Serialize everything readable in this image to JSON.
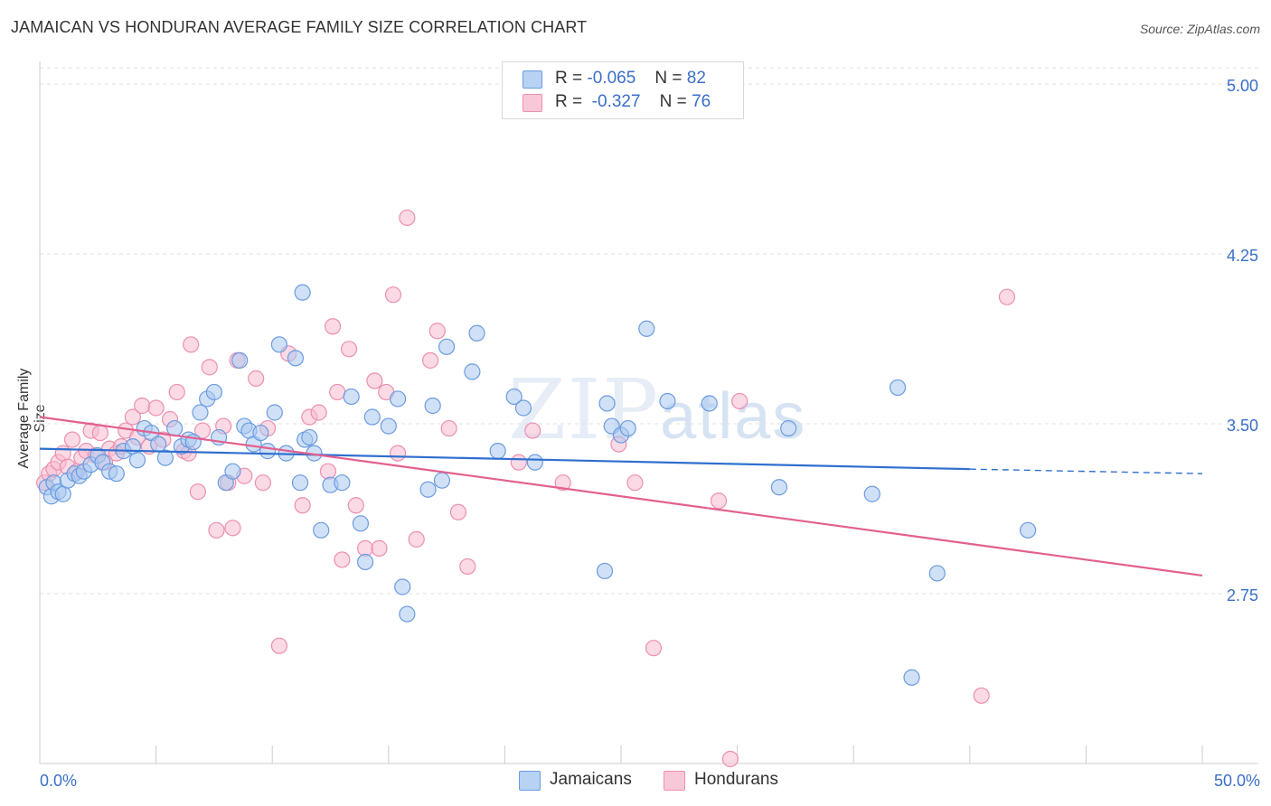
{
  "title": "JAMAICAN VS HONDURAN AVERAGE FAMILY SIZE CORRELATION CHART",
  "source": "Source: ZipAtlas.com",
  "watermark": {
    "zip": "ZIP",
    "atlas": "atlas"
  },
  "legend": {
    "rows": [
      {
        "r_label": "R =",
        "r_value": "-0.065",
        "n_label": "N =",
        "n_value": "82"
      },
      {
        "r_label": "R =",
        "r_value": "-0.327",
        "n_label": "N =",
        "n_value": "76"
      }
    ]
  },
  "colors": {
    "jamaicans_fill": "#a9c8f0",
    "jamaicans_stroke": "#6b9be0",
    "jamaicans_line": "#2f6fcf",
    "hondurans_fill": "#f7bcd0",
    "hondurans_stroke": "#ec8fb0",
    "hondurans_line": "#e2608f",
    "tick_label": "#3a6fc9",
    "grid": "#e2e2e2"
  },
  "chart_data": {
    "type": "scatter",
    "title": "JAMAICAN VS HONDURAN AVERAGE FAMILY SIZE CORRELATION CHART",
    "xlabel": "",
    "ylabel": "Average Family Size",
    "xlim": [
      0,
      50
    ],
    "ylim": [
      2.0,
      5.1
    ],
    "x_tick_labels": [
      "0.0%",
      "50.0%"
    ],
    "y_ticks": [
      2.75,
      3.5,
      4.25,
      5.0
    ],
    "y_tick_labels": [
      "2.75",
      "3.50",
      "4.25",
      "5.00"
    ],
    "grid": true,
    "legend_position": "bottom",
    "series": [
      {
        "name": "Jamaicans",
        "r": -0.065,
        "n": 82,
        "trend": {
          "x0": 0,
          "y0": 3.39,
          "x1": 40,
          "y1": 3.3,
          "dashed_to_x": 50,
          "dashed_to_y": 3.28
        },
        "points": [
          [
            0.3,
            3.22
          ],
          [
            0.5,
            3.18
          ],
          [
            0.6,
            3.24
          ],
          [
            0.8,
            3.2
          ],
          [
            1.0,
            3.19
          ],
          [
            1.2,
            3.25
          ],
          [
            1.5,
            3.28
          ],
          [
            1.7,
            3.27
          ],
          [
            1.9,
            3.29
          ],
          [
            2.2,
            3.32
          ],
          [
            2.5,
            3.36
          ],
          [
            2.7,
            3.33
          ],
          [
            3.0,
            3.29
          ],
          [
            3.3,
            3.28
          ],
          [
            3.6,
            3.38
          ],
          [
            4.0,
            3.4
          ],
          [
            4.2,
            3.34
          ],
          [
            4.5,
            3.48
          ],
          [
            4.8,
            3.46
          ],
          [
            5.1,
            3.41
          ],
          [
            5.4,
            3.35
          ],
          [
            5.8,
            3.48
          ],
          [
            6.1,
            3.4
          ],
          [
            6.4,
            3.43
          ],
          [
            6.6,
            3.42
          ],
          [
            6.9,
            3.55
          ],
          [
            7.2,
            3.61
          ],
          [
            7.5,
            3.64
          ],
          [
            7.7,
            3.44
          ],
          [
            8.0,
            3.24
          ],
          [
            8.3,
            3.29
          ],
          [
            8.6,
            3.78
          ],
          [
            8.8,
            3.49
          ],
          [
            9.0,
            3.47
          ],
          [
            9.2,
            3.41
          ],
          [
            9.5,
            3.46
          ],
          [
            9.8,
            3.38
          ],
          [
            10.1,
            3.55
          ],
          [
            10.3,
            3.85
          ],
          [
            10.6,
            3.37
          ],
          [
            11.0,
            3.79
          ],
          [
            11.2,
            3.24
          ],
          [
            11.4,
            3.43
          ],
          [
            11.6,
            3.44
          ],
          [
            11.8,
            3.37
          ],
          [
            12.1,
            3.03
          ],
          [
            12.5,
            3.23
          ],
          [
            13.0,
            3.24
          ],
          [
            13.4,
            3.62
          ],
          [
            13.8,
            3.06
          ],
          [
            14.0,
            2.89
          ],
          [
            14.3,
            3.53
          ],
          [
            15.0,
            3.49
          ],
          [
            15.4,
            3.61
          ],
          [
            15.6,
            2.78
          ],
          [
            15.8,
            2.66
          ],
          [
            16.7,
            3.21
          ],
          [
            16.9,
            3.58
          ],
          [
            17.3,
            3.25
          ],
          [
            17.5,
            3.84
          ],
          [
            18.6,
            3.73
          ],
          [
            18.8,
            3.9
          ],
          [
            19.7,
            3.38
          ],
          [
            20.4,
            3.62
          ],
          [
            20.8,
            3.57
          ],
          [
            21.3,
            3.33
          ],
          [
            24.3,
            2.85
          ],
          [
            24.4,
            3.59
          ],
          [
            24.6,
            3.49
          ],
          [
            25.0,
            3.45
          ],
          [
            25.3,
            3.48
          ],
          [
            26.1,
            3.92
          ],
          [
            27.0,
            3.6
          ],
          [
            28.8,
            3.59
          ],
          [
            31.8,
            3.22
          ],
          [
            32.2,
            3.48
          ],
          [
            35.8,
            3.19
          ],
          [
            36.9,
            3.66
          ],
          [
            37.5,
            2.38
          ],
          [
            38.6,
            2.84
          ],
          [
            11.3,
            4.08
          ],
          [
            42.5,
            3.03
          ]
        ]
      },
      {
        "name": "Hondurans",
        "r": -0.327,
        "n": 76,
        "trend": {
          "x0": 0,
          "y0": 3.53,
          "x1": 50,
          "y1": 2.83
        },
        "points": [
          [
            0.2,
            3.24
          ],
          [
            0.4,
            3.28
          ],
          [
            0.6,
            3.3
          ],
          [
            0.8,
            3.33
          ],
          [
            1.0,
            3.37
          ],
          [
            1.2,
            3.31
          ],
          [
            1.4,
            3.43
          ],
          [
            1.6,
            3.29
          ],
          [
            1.8,
            3.35
          ],
          [
            2.0,
            3.38
          ],
          [
            2.2,
            3.47
          ],
          [
            2.4,
            3.36
          ],
          [
            2.6,
            3.46
          ],
          [
            2.8,
            3.33
          ],
          [
            3.0,
            3.39
          ],
          [
            3.3,
            3.37
          ],
          [
            3.5,
            3.4
          ],
          [
            3.7,
            3.47
          ],
          [
            4.0,
            3.53
          ],
          [
            4.2,
            3.44
          ],
          [
            4.4,
            3.58
          ],
          [
            4.7,
            3.4
          ],
          [
            5.0,
            3.57
          ],
          [
            5.3,
            3.43
          ],
          [
            5.6,
            3.52
          ],
          [
            5.9,
            3.64
          ],
          [
            6.2,
            3.38
          ],
          [
            6.4,
            3.37
          ],
          [
            6.5,
            3.85
          ],
          [
            6.8,
            3.2
          ],
          [
            7.0,
            3.47
          ],
          [
            7.3,
            3.75
          ],
          [
            7.6,
            3.03
          ],
          [
            7.9,
            3.49
          ],
          [
            8.1,
            3.24
          ],
          [
            8.3,
            3.04
          ],
          [
            8.5,
            3.78
          ],
          [
            8.8,
            3.27
          ],
          [
            9.3,
            3.7
          ],
          [
            9.6,
            3.24
          ],
          [
            9.8,
            3.48
          ],
          [
            10.3,
            2.52
          ],
          [
            10.7,
            3.81
          ],
          [
            11.3,
            3.14
          ],
          [
            11.6,
            3.53
          ],
          [
            12.0,
            3.55
          ],
          [
            12.4,
            3.29
          ],
          [
            12.6,
            3.93
          ],
          [
            12.8,
            3.64
          ],
          [
            13.0,
            2.9
          ],
          [
            13.3,
            3.83
          ],
          [
            13.6,
            3.14
          ],
          [
            14.0,
            2.95
          ],
          [
            14.4,
            3.69
          ],
          [
            14.6,
            2.95
          ],
          [
            14.9,
            3.64
          ],
          [
            15.2,
            4.07
          ],
          [
            15.4,
            3.37
          ],
          [
            15.8,
            4.41
          ],
          [
            16.2,
            2.99
          ],
          [
            16.8,
            3.78
          ],
          [
            17.1,
            3.91
          ],
          [
            17.6,
            3.48
          ],
          [
            18.0,
            3.11
          ],
          [
            18.4,
            2.87
          ],
          [
            20.6,
            3.33
          ],
          [
            21.2,
            3.47
          ],
          [
            22.5,
            3.24
          ],
          [
            24.9,
            3.41
          ],
          [
            25.6,
            3.24
          ],
          [
            26.4,
            2.51
          ],
          [
            29.2,
            3.16
          ],
          [
            29.7,
            2.02
          ],
          [
            30.1,
            3.6
          ],
          [
            40.5,
            2.3
          ],
          [
            41.6,
            4.06
          ]
        ]
      }
    ]
  },
  "bottom_legend": {
    "items": [
      "Jamaicans",
      "Hondurans"
    ]
  }
}
